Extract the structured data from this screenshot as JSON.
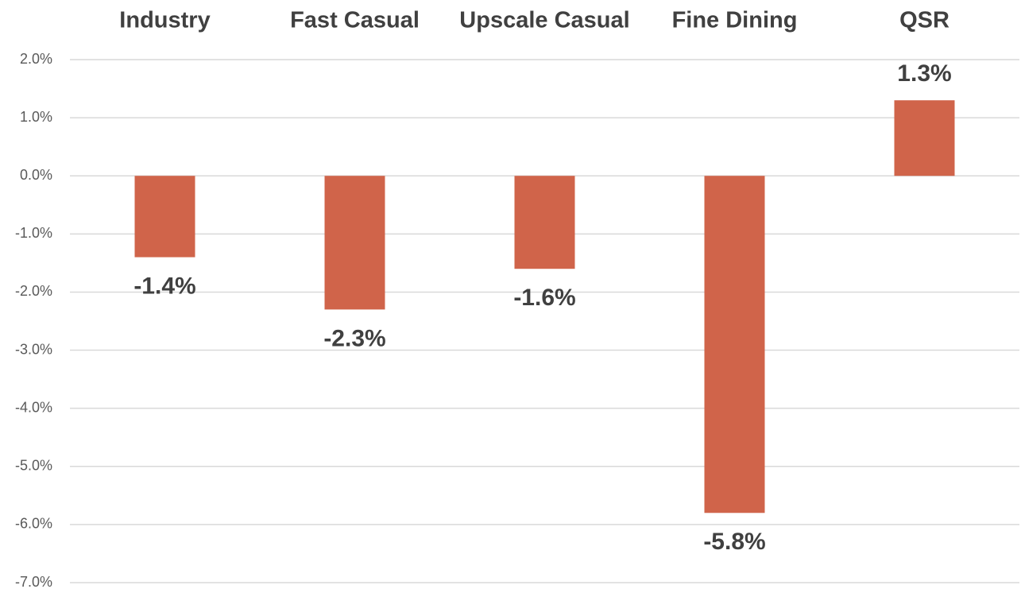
{
  "chart_data": {
    "type": "bar",
    "categories": [
      "Industry",
      "Fast Casual",
      "Upscale Casual",
      "Fine Dining",
      "QSR"
    ],
    "values": [
      -1.4,
      -2.3,
      -1.6,
      -5.8,
      1.3
    ],
    "value_labels": [
      "-1.4%",
      "-2.3%",
      "-1.6%",
      "-5.8%",
      "1.3%"
    ],
    "color": "#d0644a",
    "ylim": [
      -7,
      2
    ],
    "yticks": [
      {
        "value": 2,
        "label": "2.0%"
      },
      {
        "value": 1,
        "label": "1.0%"
      },
      {
        "value": 0,
        "label": "0.0%"
      },
      {
        "value": -1,
        "label": "-1.0%"
      },
      {
        "value": -2,
        "label": "-2.0%"
      },
      {
        "value": -3,
        "label": "-3.0%"
      },
      {
        "value": -4,
        "label": "-4.0%"
      },
      {
        "value": -5,
        "label": "-5.0%"
      },
      {
        "value": -6,
        "label": "-6.0%"
      },
      {
        "value": -7,
        "label": "-7.0%"
      }
    ],
    "grid": true
  }
}
